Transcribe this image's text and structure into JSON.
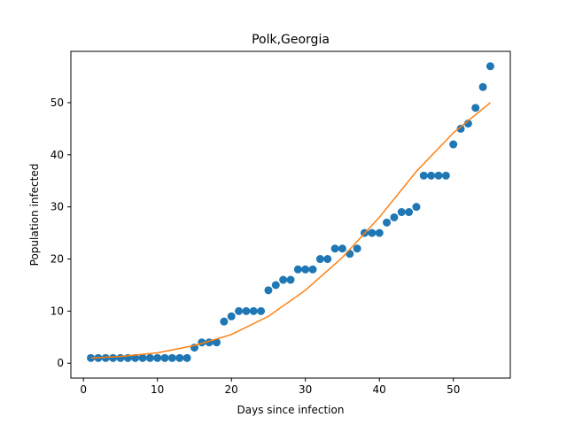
{
  "chart_data": {
    "type": "scatter",
    "title": "Polk,Georgia",
    "xlabel": "Days since infection",
    "ylabel": "Population infected",
    "xlim": [
      -1.7,
      57.7
    ],
    "ylim": [
      -2.85,
      59.85
    ],
    "xticks": [
      0,
      10,
      20,
      30,
      40,
      50
    ],
    "yticks": [
      0,
      10,
      20,
      30,
      40,
      50
    ],
    "grid": false,
    "series": [
      {
        "kind": "scatter",
        "color": "#1f77b4",
        "x": [
          1,
          2,
          3,
          4,
          5,
          6,
          7,
          8,
          9,
          10,
          11,
          12,
          13,
          14,
          15,
          16,
          17,
          18,
          19,
          20,
          21,
          22,
          23,
          24,
          25,
          26,
          27,
          28,
          29,
          30,
          31,
          32,
          33,
          34,
          35,
          36,
          37,
          38,
          39,
          40,
          41,
          42,
          43,
          44,
          45,
          46,
          47,
          48,
          49,
          50,
          51,
          52,
          53,
          54,
          55
        ],
        "y": [
          1,
          1,
          1,
          1,
          1,
          1,
          1,
          1,
          1,
          1,
          1,
          1,
          1,
          1,
          3,
          4,
          4,
          4,
          8,
          9,
          10,
          10,
          10,
          10,
          14,
          15,
          16,
          16,
          18,
          18,
          18,
          20,
          20,
          22,
          22,
          21,
          22,
          25,
          25,
          25,
          27,
          28,
          29,
          29,
          30,
          36,
          36,
          36,
          36,
          42,
          45,
          46,
          49,
          53,
          57
        ]
      },
      {
        "kind": "line",
        "color": "#ff7f0e",
        "x": [
          1,
          5,
          10,
          15,
          20,
          25,
          30,
          35,
          40,
          45,
          50,
          55
        ],
        "y": [
          1.0,
          1.3,
          2.0,
          3.4,
          5.5,
          9.0,
          14.0,
          20.3,
          28.0,
          36.8,
          44.2,
          50.0
        ]
      }
    ]
  }
}
